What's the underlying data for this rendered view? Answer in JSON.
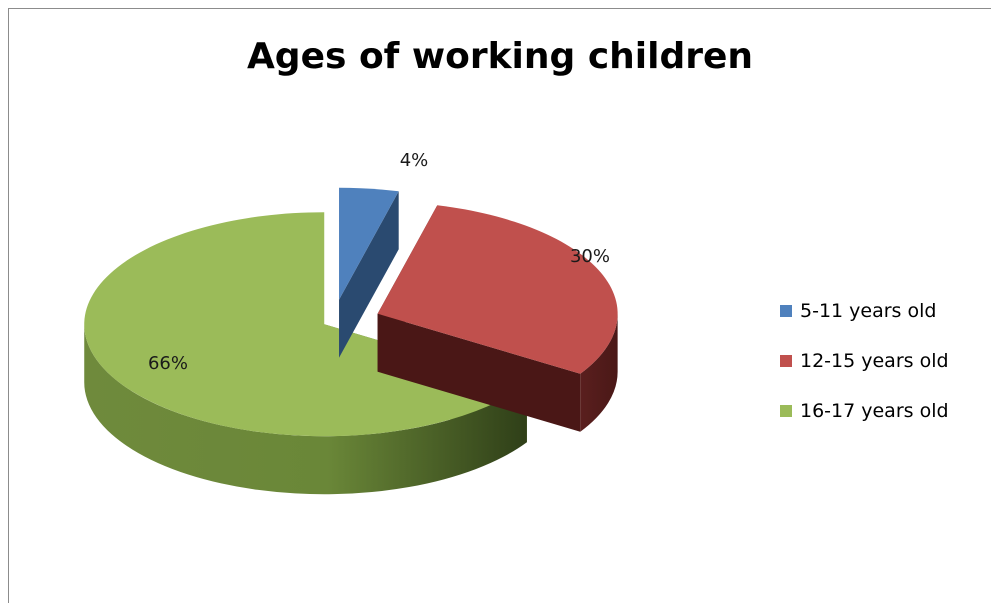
{
  "chart_data": {
    "type": "pie",
    "title": "Ages of working children",
    "categories": [
      "5-11 years old",
      "12-15 years old",
      "16-17 years old"
    ],
    "values": [
      4,
      30,
      66
    ],
    "data_labels": [
      "4%",
      "30%",
      "66%"
    ],
    "colors": [
      "#4f81bd",
      "#c0504d",
      "#9bbb59"
    ],
    "style": "3d-exploded",
    "legend_position": "right"
  }
}
